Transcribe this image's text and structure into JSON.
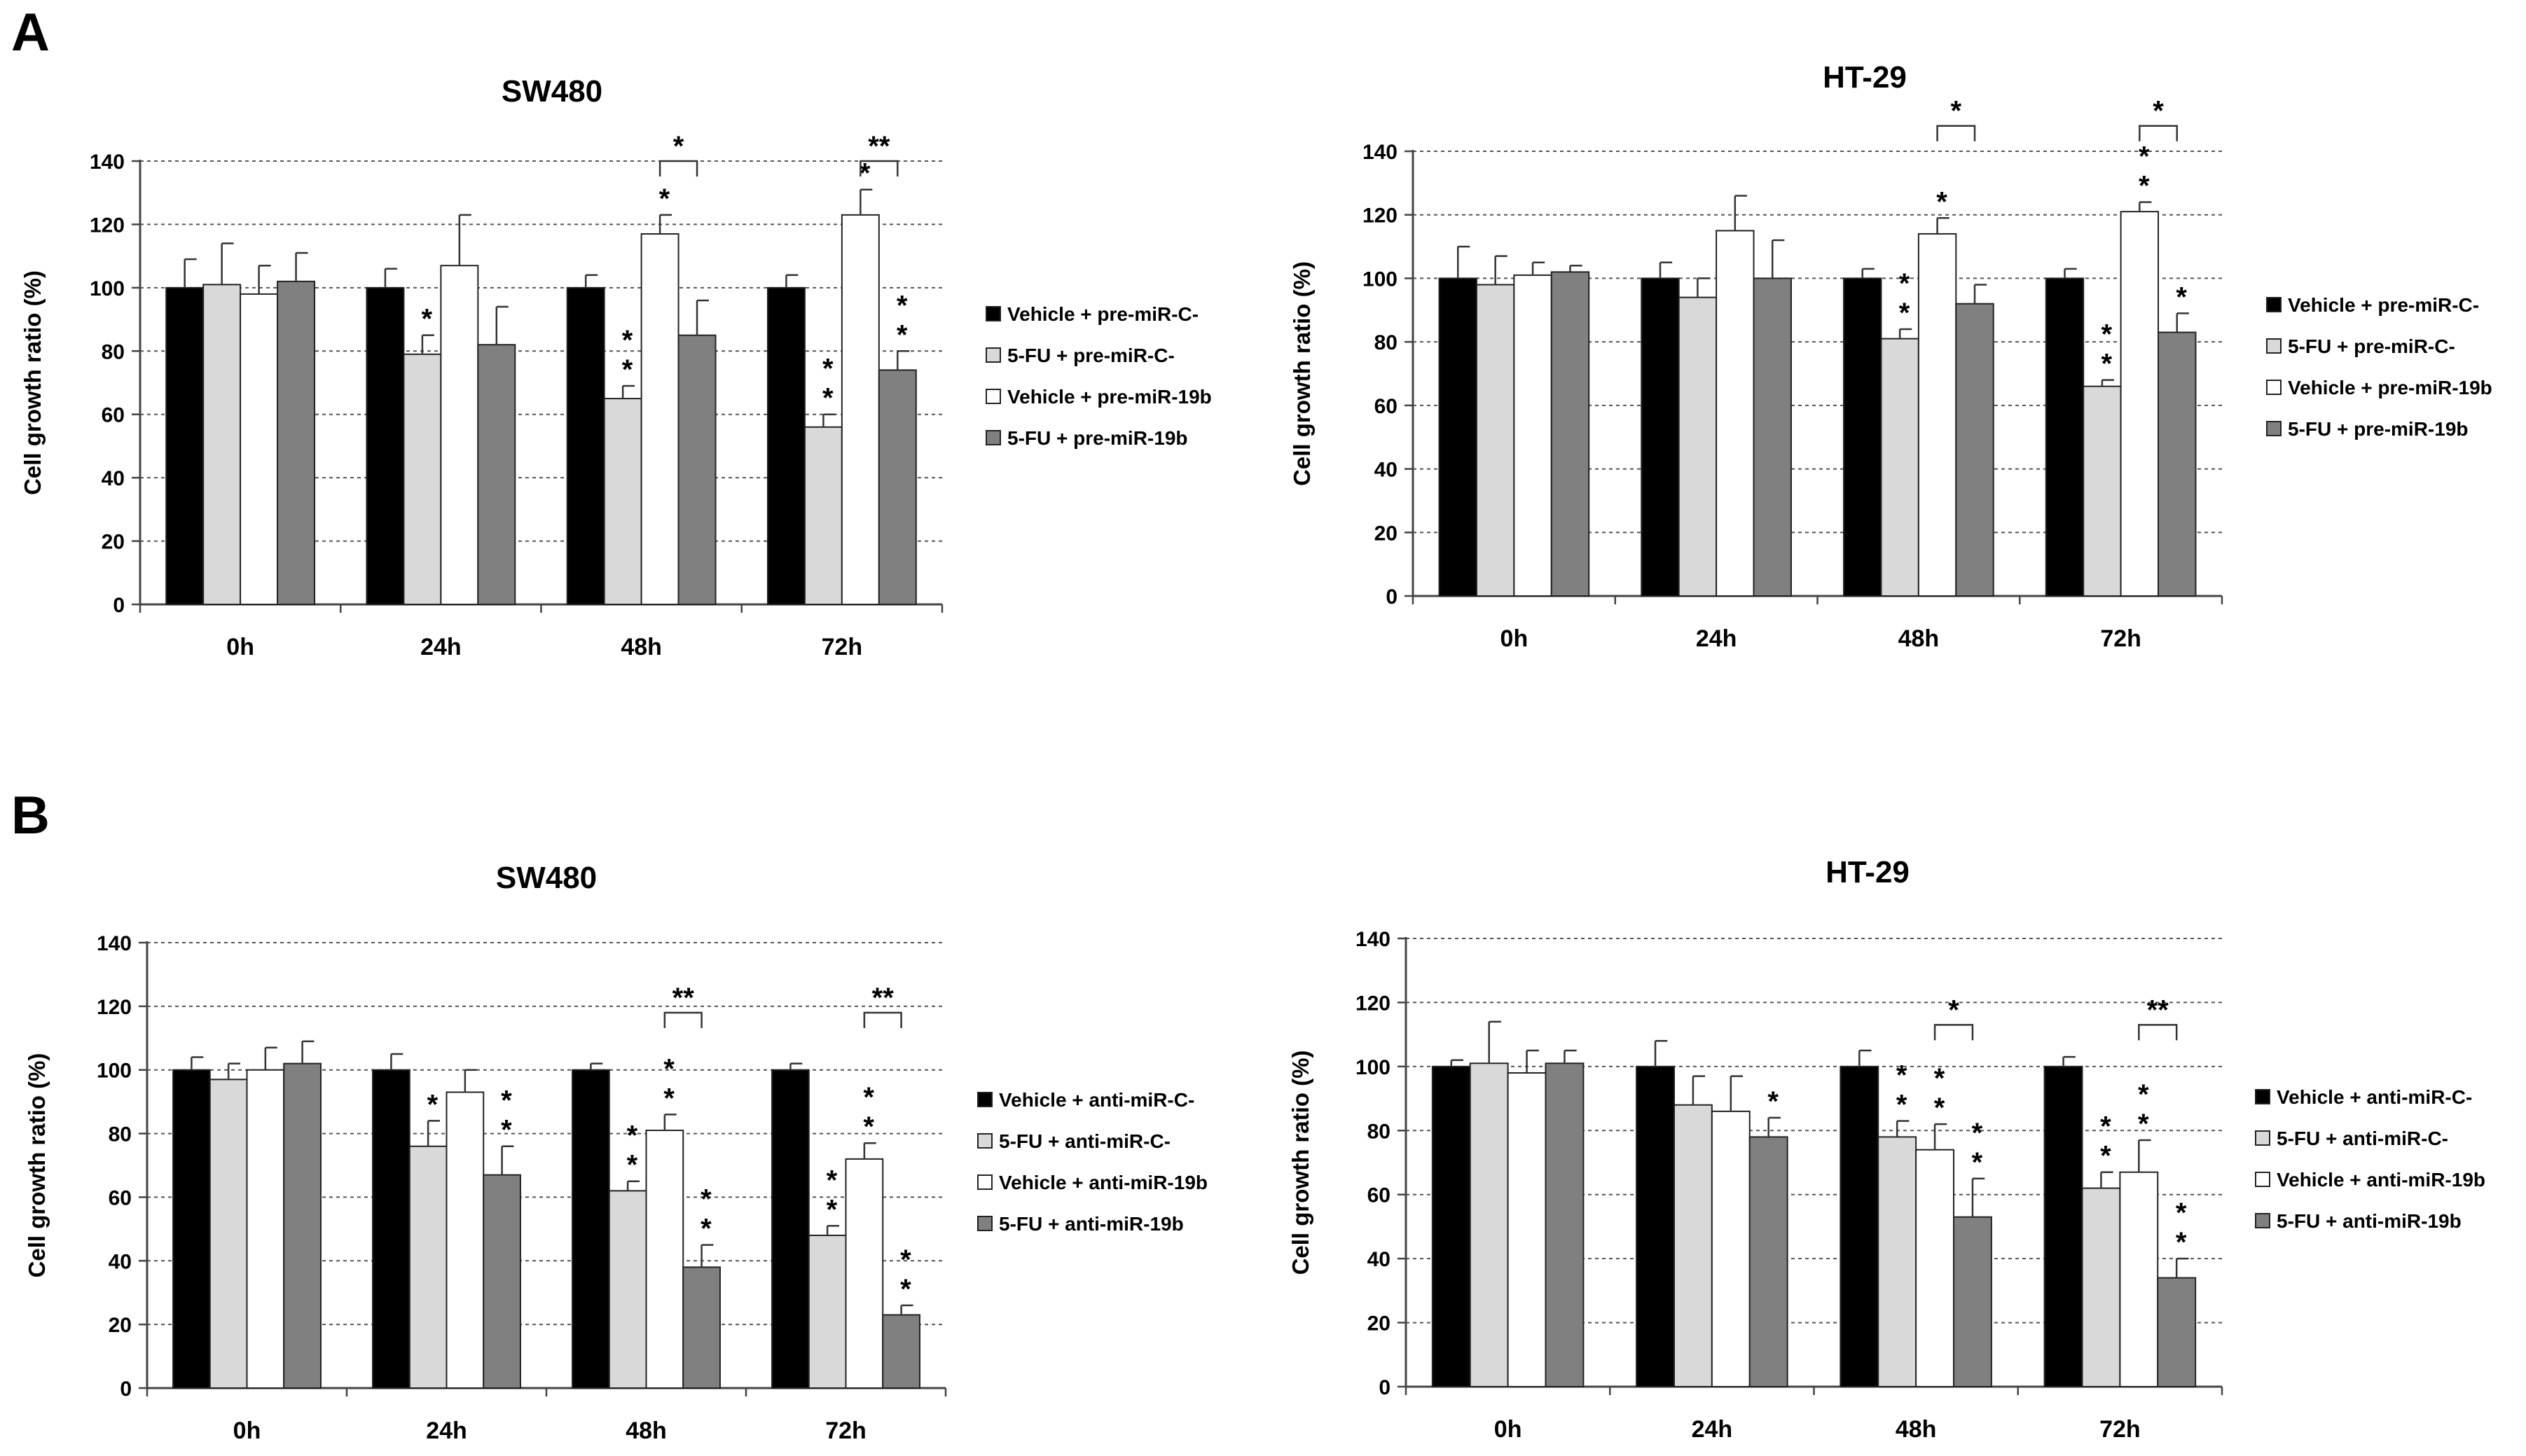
{
  "panels": [
    {
      "letter": "A",
      "charts": [
        0,
        1
      ]
    },
    {
      "letter": "B",
      "charts": [
        2,
        3
      ]
    }
  ],
  "colors": {
    "black": "#000000",
    "light": "#d9d9d9",
    "white": "#ffffff",
    "dark": "#808080",
    "grid": "#555555",
    "axis": "#444444",
    "text": "#000000"
  },
  "chart_data": [
    {
      "type": "bar",
      "title": "SW480",
      "ylabel": "Cell growth ratio (%)",
      "xlabel": "",
      "ylim": [
        0,
        140
      ],
      "yticks": [
        0,
        20,
        40,
        60,
        80,
        100,
        120,
        140
      ],
      "grid": "horizontal dashed",
      "legend_position": "right",
      "categories": [
        "0h",
        "24h",
        "48h",
        "72h"
      ],
      "series": [
        {
          "name": "Vehicle + pre-miR-C-",
          "color": "black",
          "values": [
            100,
            100,
            100,
            100
          ],
          "errors": [
            9,
            6,
            4,
            4
          ],
          "marks": [
            "",
            "",
            "",
            ""
          ]
        },
        {
          "name": "5-FU + pre-miR-C-",
          "color": "light",
          "values": [
            101,
            79,
            65,
            56
          ],
          "errors": [
            13,
            6,
            4,
            4
          ],
          "marks": [
            "",
            "*",
            "**",
            "**"
          ]
        },
        {
          "name": "Vehicle + pre-miR-19b",
          "color": "white",
          "values": [
            98,
            107,
            117,
            123
          ],
          "errors": [
            9,
            16,
            6,
            8
          ],
          "marks": [
            "",
            "",
            "*",
            "*"
          ]
        },
        {
          "name": "5-FU + pre-miR-19b",
          "color": "dark",
          "values": [
            102,
            82,
            85,
            74
          ],
          "errors": [
            9,
            12,
            11,
            6
          ],
          "marks": [
            "",
            "",
            "",
            "**"
          ]
        }
      ],
      "brackets": [
        {
          "category": "48h",
          "from": 2,
          "to": 3,
          "y": 140,
          "label": "*"
        },
        {
          "category": "72h",
          "from": 2,
          "to": 3,
          "y": 140,
          "label": "**"
        }
      ]
    },
    {
      "type": "bar",
      "title": "HT-29",
      "ylabel": "Cell growth ratio (%)",
      "xlabel": "",
      "ylim": [
        0,
        140
      ],
      "yticks": [
        0,
        20,
        40,
        60,
        80,
        100,
        120,
        140
      ],
      "grid": "horizontal dashed",
      "legend_position": "right",
      "categories": [
        "0h",
        "24h",
        "48h",
        "72h"
      ],
      "series": [
        {
          "name": "Vehicle + pre-miR-C-",
          "color": "black",
          "values": [
            100,
            100,
            100,
            100
          ],
          "errors": [
            10,
            5,
            3,
            3
          ],
          "marks": [
            "",
            "",
            "",
            ""
          ]
        },
        {
          "name": "5-FU + pre-miR-C-",
          "color": "light",
          "values": [
            98,
            94,
            81,
            66
          ],
          "errors": [
            9,
            6,
            3,
            2
          ],
          "marks": [
            "",
            "",
            "**",
            "**"
          ]
        },
        {
          "name": "Vehicle + pre-miR-19b",
          "color": "white",
          "values": [
            101,
            115,
            114,
            121
          ],
          "errors": [
            4,
            11,
            5,
            3
          ],
          "marks": [
            "",
            "",
            "*",
            "**"
          ]
        },
        {
          "name": "5-FU + pre-miR-19b",
          "color": "dark",
          "values": [
            102,
            100,
            92,
            83
          ],
          "errors": [
            2,
            12,
            6,
            6
          ],
          "marks": [
            "",
            "",
            "",
            "*"
          ]
        }
      ],
      "brackets": [
        {
          "category": "48h",
          "from": 2,
          "to": 3,
          "y": 148,
          "label": "*"
        },
        {
          "category": "72h",
          "from": 2,
          "to": 3,
          "y": 148,
          "label": "*"
        }
      ]
    },
    {
      "type": "bar",
      "title": "SW480",
      "ylabel": "Cell growth ratio (%)",
      "xlabel": "",
      "ylim": [
        0,
        140
      ],
      "yticks": [
        0,
        20,
        40,
        60,
        80,
        100,
        120,
        140
      ],
      "grid": "horizontal dashed",
      "legend_position": "right",
      "categories": [
        "0h",
        "24h",
        "48h",
        "72h"
      ],
      "series": [
        {
          "name": "Vehicle + anti-miR-C-",
          "color": "black",
          "values": [
            100,
            100,
            100,
            100
          ],
          "errors": [
            4,
            5,
            2,
            2
          ],
          "marks": [
            "",
            "",
            "",
            ""
          ]
        },
        {
          "name": "5-FU + anti-miR-C-",
          "color": "light",
          "values": [
            97,
            76,
            62,
            48
          ],
          "errors": [
            5,
            8,
            3,
            3
          ],
          "marks": [
            "",
            "*",
            "**",
            "**"
          ]
        },
        {
          "name": "Vehicle + anti-miR-19b",
          "color": "white",
          "values": [
            100,
            93,
            81,
            72
          ],
          "errors": [
            7,
            7,
            5,
            5
          ],
          "marks": [
            "",
            "",
            "**",
            "**"
          ]
        },
        {
          "name": "5-FU + anti-miR-19b",
          "color": "dark",
          "values": [
            102,
            67,
            38,
            23
          ],
          "errors": [
            7,
            9,
            7,
            3
          ],
          "marks": [
            "",
            "**",
            "**",
            "**"
          ]
        }
      ],
      "brackets": [
        {
          "category": "48h",
          "from": 2,
          "to": 3,
          "y": 118,
          "label": "**"
        },
        {
          "category": "72h",
          "from": 2,
          "to": 3,
          "y": 118,
          "label": "**"
        }
      ]
    },
    {
      "type": "bar",
      "title": "HT-29",
      "ylabel": "Cell growth ratio (%)",
      "xlabel": "",
      "ylim": [
        0,
        140
      ],
      "yticks": [
        0,
        20,
        40,
        60,
        80,
        100,
        120,
        140
      ],
      "grid": "horizontal dashed",
      "legend_position": "right",
      "categories": [
        "0h",
        "24h",
        "48h",
        "72h"
      ],
      "series": [
        {
          "name": "Vehicle + anti-miR-C-",
          "color": "black",
          "values": [
            100,
            100,
            100,
            100
          ],
          "errors": [
            2,
            8,
            5,
            3
          ],
          "marks": [
            "",
            "",
            "",
            ""
          ]
        },
        {
          "name": "5-FU + anti-miR-C-",
          "color": "light",
          "values": [
            101,
            88,
            78,
            62
          ],
          "errors": [
            13,
            9,
            5,
            5
          ],
          "marks": [
            "",
            "",
            "**",
            "**"
          ]
        },
        {
          "name": "Vehicle + anti-miR-19b",
          "color": "white",
          "values": [
            98,
            86,
            74,
            67
          ],
          "errors": [
            7,
            11,
            8,
            10
          ],
          "marks": [
            "",
            "",
            "**",
            "**"
          ]
        },
        {
          "name": "5-FU + anti-miR-19b",
          "color": "dark",
          "values": [
            101,
            78,
            53,
            34
          ],
          "errors": [
            4,
            6,
            12,
            6
          ],
          "marks": [
            "",
            "*",
            "**",
            "**"
          ]
        }
      ],
      "brackets": [
        {
          "category": "48h",
          "from": 2,
          "to": 3,
          "y": 113,
          "label": "*"
        },
        {
          "category": "72h",
          "from": 2,
          "to": 3,
          "y": 113,
          "label": "**"
        }
      ]
    }
  ]
}
